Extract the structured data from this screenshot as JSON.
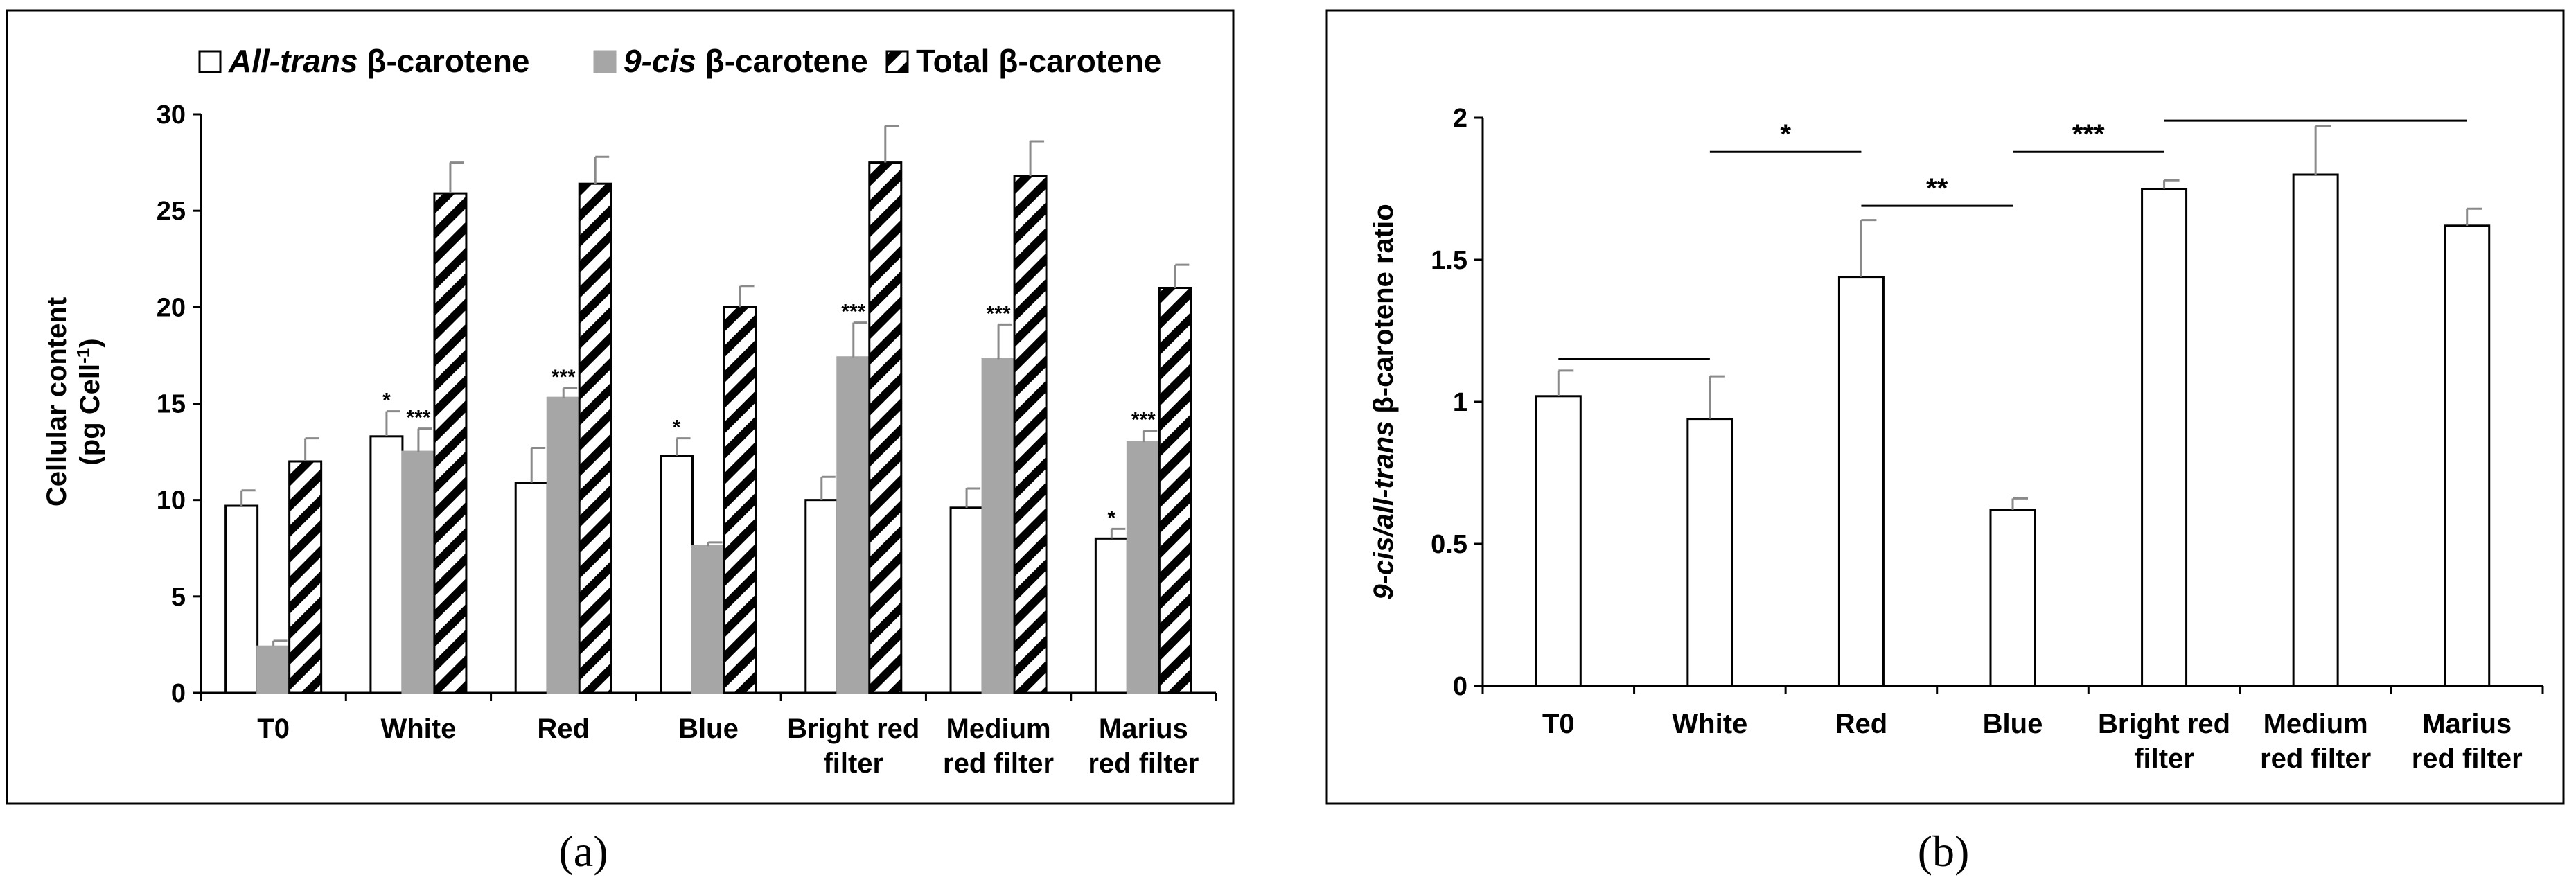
{
  "chart_data": [
    {
      "type": "bar",
      "panel_label": "(a)",
      "categories": [
        "T0",
        "White",
        "Red",
        "Blue",
        "Bright red filter",
        "Medium red filter",
        "Marius red filter"
      ],
      "category_lines": [
        [
          "T0"
        ],
        [
          "White"
        ],
        [
          "Red"
        ],
        [
          "Blue"
        ],
        [
          "Bright red",
          "filter"
        ],
        [
          "Medium",
          "red filter"
        ],
        [
          "Marius",
          "red filter"
        ]
      ],
      "ylabel_lines": [
        "Cellular content",
        "(pg Cell",
        "-1",
        ")"
      ],
      "xlabel": "",
      "ylim": [
        0,
        30
      ],
      "yticks": [
        "0",
        "5",
        "10",
        "15",
        "20",
        "25",
        "30"
      ],
      "legend_position": "top",
      "series": [
        {
          "name": "All-trans β-carotene",
          "legend_italic": "All-trans",
          "legend_rest": " β-carotene",
          "style": "white",
          "values": [
            9.7,
            13.3,
            10.9,
            12.3,
            10.0,
            9.6,
            8.0
          ],
          "errors": [
            0.8,
            1.3,
            1.8,
            0.9,
            1.2,
            1.0,
            0.5
          ],
          "annotations": [
            "",
            "*",
            "",
            "*",
            "",
            "",
            "*"
          ]
        },
        {
          "name": "9-cis β-carotene",
          "legend_italic": "9-cis",
          "legend_rest": " β-carotene",
          "style": "gray",
          "values": [
            2.4,
            12.5,
            15.3,
            7.6,
            17.4,
            17.3,
            13.0
          ],
          "errors": [
            0.3,
            1.2,
            0.5,
            0.2,
            1.8,
            1.8,
            0.6
          ],
          "annotations": [
            "",
            "***",
            "***",
            "",
            "***",
            "***",
            "***"
          ]
        },
        {
          "name": "Total β-carotene",
          "legend_italic": "",
          "legend_rest": "Total β-carotene",
          "style": "hatched",
          "values": [
            12.0,
            25.9,
            26.4,
            20.0,
            27.5,
            26.8,
            21.0
          ],
          "errors": [
            1.2,
            1.6,
            1.4,
            1.1,
            1.9,
            1.8,
            1.2
          ],
          "annotations": [
            "",
            "",
            "",
            "",
            "",
            "",
            ""
          ]
        }
      ]
    },
    {
      "type": "bar",
      "panel_label": "(b)",
      "categories": [
        "T0",
        "White",
        "Red",
        "Blue",
        "Bright red filter",
        "Medium red filter",
        "Marius red filter"
      ],
      "category_lines": [
        [
          "T0"
        ],
        [
          "White"
        ],
        [
          "Red"
        ],
        [
          "Blue"
        ],
        [
          "Bright red",
          "filter"
        ],
        [
          "Medium",
          "red filter"
        ],
        [
          "Marius",
          "red filter"
        ]
      ],
      "ylabel_italic": "9-cis/all-trans",
      "ylabel_rest": " β-carotene ratio",
      "xlabel": "",
      "ylim": [
        0,
        2
      ],
      "yticks": [
        "0",
        "0.5",
        "1",
        "1.5",
        "2"
      ],
      "series": [
        {
          "name": "9-cis/all-trans β-carotene ratio",
          "style": "white",
          "values": [
            1.02,
            0.94,
            1.44,
            0.62,
            1.75,
            1.8,
            1.62
          ],
          "errors": [
            0.09,
            0.15,
            0.2,
            0.04,
            0.03,
            0.17,
            0.06
          ]
        }
      ],
      "significance": [
        {
          "from": 0,
          "to": 1,
          "level": 1.15,
          "label": ""
        },
        {
          "from": 1,
          "to": 2,
          "level": 1.88,
          "label": "*"
        },
        {
          "from": 2,
          "to": 3,
          "level": 1.69,
          "label": "**"
        },
        {
          "from": 3,
          "to": 4,
          "level": 1.88,
          "label": "***"
        },
        {
          "from": 4,
          "to": 6,
          "level": 1.99,
          "label": ""
        }
      ]
    }
  ]
}
